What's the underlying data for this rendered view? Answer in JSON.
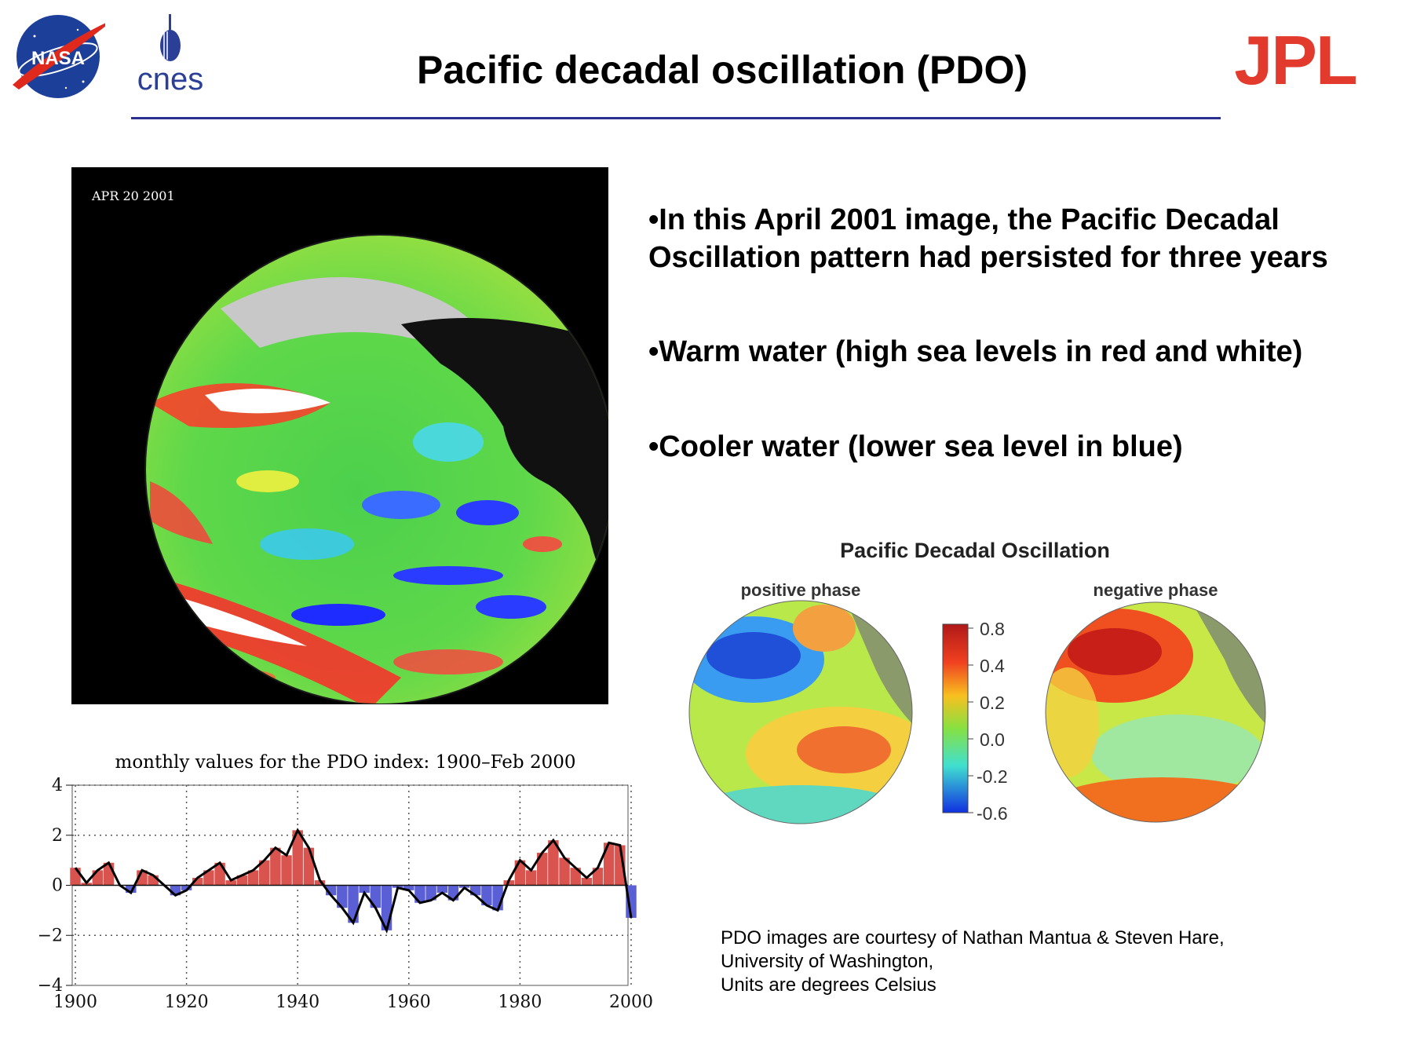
{
  "header": {
    "title": "Pacific decadal oscillation (PDO)",
    "logos": {
      "nasa": "NASA",
      "cnes": "cnes",
      "jpl": "JPL"
    },
    "rule_color": "#2b2f8f",
    "jpl_color": "#e23a2c",
    "nasa_blue": "#1c3f9a"
  },
  "satellite_image": {
    "date_label": "APR 20 2001"
  },
  "bullets": [
    "•In this April 2001 image, the Pacific Decadal Oscillation pattern had persisted for three years",
    "•Warm water (high sea levels in red and white)",
    "•Cooler water (lower sea level in blue)"
  ],
  "phase_figure": {
    "title": "Pacific Decadal Oscillation",
    "positive_label": "positive phase",
    "negative_label": "negative phase",
    "colorbar_ticks": [
      "0.8",
      "0.4",
      "0.2",
      "0.0",
      "-0.2",
      "-0.6"
    ]
  },
  "credit": [
    "PDO images are courtesy of Nathan Mantua & Steven Hare,",
    "University of Washington,",
    "Units are degrees Celsius"
  ],
  "chart_data": {
    "type": "bar",
    "title": "monthly values for the PDO index: 1900–Feb 2000",
    "xlabel": "",
    "ylabel": "",
    "xlim": [
      1900,
      2000
    ],
    "ylim": [
      -4,
      4
    ],
    "x_ticks": [
      "1900",
      "1920",
      "1940",
      "1960",
      "1980",
      "2000"
    ],
    "y_ticks": [
      "4",
      "2",
      "0",
      "−2",
      "−4"
    ],
    "grid": true,
    "positive_color": "#d9534f",
    "negative_color": "#5b5fd6",
    "smoothed_color": "#000000",
    "x": [
      1900,
      1902,
      1904,
      1906,
      1908,
      1910,
      1912,
      1914,
      1916,
      1918,
      1920,
      1922,
      1924,
      1926,
      1928,
      1930,
      1932,
      1934,
      1936,
      1938,
      1940,
      1942,
      1944,
      1946,
      1948,
      1950,
      1952,
      1954,
      1956,
      1958,
      1960,
      1962,
      1964,
      1966,
      1968,
      1970,
      1972,
      1974,
      1976,
      1978,
      1980,
      1982,
      1984,
      1986,
      1988,
      1990,
      1992,
      1994,
      1996,
      1998,
      2000
    ],
    "values": [
      0.7,
      0.1,
      0.6,
      0.9,
      0.0,
      -0.3,
      0.6,
      0.4,
      0.0,
      -0.4,
      -0.2,
      0.3,
      0.6,
      0.9,
      0.2,
      0.4,
      0.6,
      1.0,
      1.5,
      1.2,
      2.2,
      1.5,
      0.2,
      -0.4,
      -0.9,
      -1.5,
      -0.3,
      -0.9,
      -1.8,
      -0.1,
      -0.2,
      -0.7,
      -0.6,
      -0.3,
      -0.6,
      -0.1,
      -0.4,
      -0.8,
      -1.0,
      0.2,
      1.0,
      0.6,
      1.3,
      1.8,
      1.1,
      0.7,
      0.3,
      0.7,
      1.7,
      1.6,
      -1.3
    ]
  }
}
